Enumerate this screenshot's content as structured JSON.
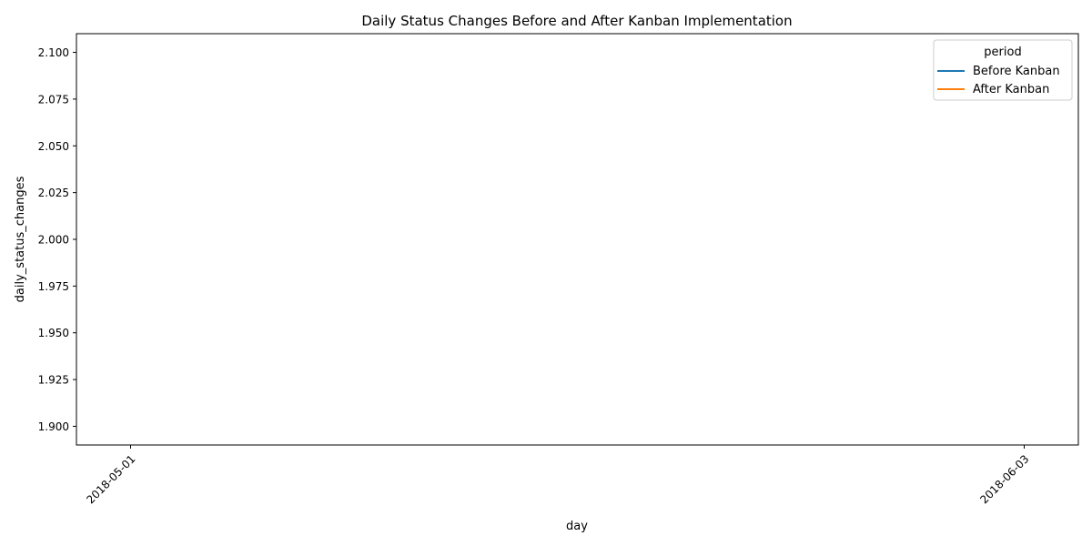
{
  "chart_data": {
    "type": "line",
    "title": "Daily Status Changes Before and After Kanban Implementation",
    "xlabel": "day",
    "ylabel": "daily_status_changes",
    "x_ticks": [
      "2018-05-01",
      "2018-06-03"
    ],
    "y_ticks": [
      "1.900",
      "1.925",
      "1.950",
      "1.975",
      "2.000",
      "2.025",
      "2.050",
      "2.075",
      "2.100"
    ],
    "ylim": [
      1.89,
      2.11
    ],
    "xlim": [
      "2018-04-29",
      "2018-06-05"
    ],
    "grid": false,
    "legend": {
      "title": "period",
      "position": "top-right"
    },
    "series": [
      {
        "name": "Before Kanban",
        "color": "#1f77b4",
        "points": []
      },
      {
        "name": "After Kanban",
        "color": "#ff7f0e",
        "points": []
      }
    ]
  }
}
